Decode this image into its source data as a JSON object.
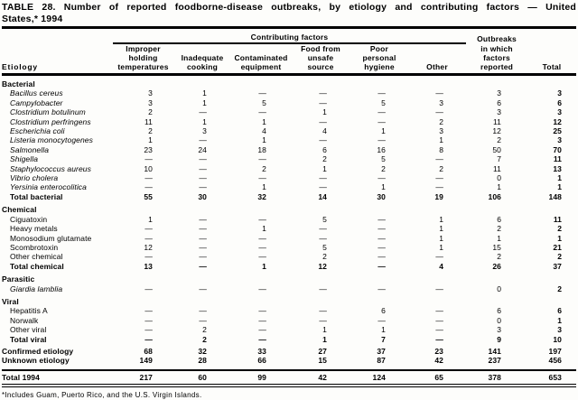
{
  "title": {
    "line1": "TABLE 28. Number of reported foodborne-disease outbreaks, by etiology and contributing factors — United",
    "line2": "States,* 1994"
  },
  "header": {
    "etiology": "Etiology",
    "spanner": "Contributing factors",
    "factors": [
      "Improper\nholding\ntemperatures",
      "Inadequate\ncooking",
      "Contaminated\nequipment",
      "Food from\nunsafe\nsource",
      "Poor\npersonal\nhygiene",
      "Other"
    ],
    "outbreaks_top": "Outbreaks",
    "outbreaks_rest": "in which\nfactors\nreported",
    "total": "Total"
  },
  "sections": [
    {
      "heading": "Bacterial",
      "rows": [
        {
          "label": "Bacillus cereus",
          "italic": true,
          "indent": true,
          "bold": false,
          "values": [
            "3",
            "1",
            "—",
            "—",
            "—",
            "—",
            "3",
            "3"
          ]
        },
        {
          "label": "Campylobacter",
          "italic": true,
          "indent": true,
          "bold": false,
          "values": [
            "3",
            "1",
            "5",
            "—",
            "5",
            "3",
            "6",
            "6"
          ]
        },
        {
          "label": "Clostridium botulinum",
          "italic": true,
          "indent": true,
          "bold": false,
          "values": [
            "2",
            "—",
            "—",
            "1",
            "—",
            "—",
            "3",
            "3"
          ]
        },
        {
          "label": "Clostridium perfringens",
          "italic": true,
          "indent": true,
          "bold": false,
          "values": [
            "11",
            "1",
            "1",
            "—",
            "—",
            "2",
            "11",
            "12"
          ]
        },
        {
          "label": "Escherichia coli",
          "italic": true,
          "indent": true,
          "bold": false,
          "values": [
            "2",
            "3",
            "4",
            "4",
            "1",
            "3",
            "12",
            "25"
          ]
        },
        {
          "label": "Listeria monocytogenes",
          "italic": true,
          "indent": true,
          "bold": false,
          "values": [
            "1",
            "—",
            "1",
            "—",
            "—",
            "1",
            "2",
            "3"
          ]
        },
        {
          "label": "Salmonella",
          "italic": true,
          "indent": true,
          "bold": false,
          "values": [
            "23",
            "24",
            "18",
            "6",
            "16",
            "8",
            "50",
            "70"
          ]
        },
        {
          "label": "Shigella",
          "italic": true,
          "indent": true,
          "bold": false,
          "values": [
            "—",
            "—",
            "—",
            "2",
            "5",
            "—",
            "7",
            "11"
          ]
        },
        {
          "label": "Staphylococcus aureus",
          "italic": true,
          "indent": true,
          "bold": false,
          "values": [
            "10",
            "—",
            "2",
            "1",
            "2",
            "2",
            "11",
            "13"
          ]
        },
        {
          "label": "Vibrio cholera",
          "italic": true,
          "indent": true,
          "bold": false,
          "values": [
            "—",
            "—",
            "—",
            "—",
            "—",
            "—",
            "0",
            "1"
          ]
        },
        {
          "label": "Yersinia enterocolitica",
          "italic": true,
          "indent": true,
          "bold": false,
          "values": [
            "—",
            "—",
            "1",
            "—",
            "1",
            "—",
            "1",
            "1"
          ]
        },
        {
          "label": "Total bacterial",
          "italic": false,
          "indent": true,
          "bold": true,
          "values": [
            "55",
            "30",
            "32",
            "14",
            "30",
            "19",
            "106",
            "148"
          ]
        }
      ]
    },
    {
      "heading": "Chemical",
      "rows": [
        {
          "label": "Ciguatoxin",
          "italic": false,
          "indent": true,
          "bold": false,
          "values": [
            "1",
            "—",
            "—",
            "5",
            "—",
            "1",
            "6",
            "11"
          ]
        },
        {
          "label": "Heavy metals",
          "italic": false,
          "indent": true,
          "bold": false,
          "values": [
            "—",
            "—",
            "1",
            "—",
            "—",
            "1",
            "2",
            "2"
          ]
        },
        {
          "label": "Monosodium glutamate",
          "italic": false,
          "indent": true,
          "bold": false,
          "values": [
            "—",
            "—",
            "—",
            "—",
            "—",
            "1",
            "1",
            "1"
          ]
        },
        {
          "label": "Scombrotoxin",
          "italic": false,
          "indent": true,
          "bold": false,
          "values": [
            "12",
            "—",
            "—",
            "5",
            "—",
            "1",
            "15",
            "21"
          ]
        },
        {
          "label": "Other chemical",
          "italic": false,
          "indent": true,
          "bold": false,
          "values": [
            "—",
            "—",
            "—",
            "2",
            "—",
            "—",
            "2",
            "2"
          ]
        },
        {
          "label": "Total chemical",
          "italic": false,
          "indent": true,
          "bold": true,
          "values": [
            "13",
            "—",
            "1",
            "12",
            "—",
            "4",
            "26",
            "37"
          ]
        }
      ]
    },
    {
      "heading": "Parasitic",
      "rows": [
        {
          "label": "Giardia lamblia",
          "italic": true,
          "indent": true,
          "bold": false,
          "values": [
            "—",
            "—",
            "—",
            "—",
            "—",
            "—",
            "0",
            "2"
          ]
        }
      ]
    },
    {
      "heading": "Viral",
      "rows": [
        {
          "label": "Hepatitis A",
          "italic": false,
          "indent": true,
          "bold": false,
          "values": [
            "—",
            "—",
            "—",
            "—",
            "6",
            "—",
            "6",
            "6"
          ]
        },
        {
          "label": "Norwalk",
          "italic": false,
          "indent": true,
          "bold": false,
          "values": [
            "—",
            "—",
            "—",
            "—",
            "—",
            "—",
            "0",
            "1"
          ]
        },
        {
          "label": "Other viral",
          "italic": false,
          "indent": true,
          "bold": false,
          "values": [
            "—",
            "2",
            "—",
            "1",
            "1",
            "—",
            "3",
            "3"
          ]
        },
        {
          "label": "Total viral",
          "italic": false,
          "indent": true,
          "bold": true,
          "values": [
            "—",
            "2",
            "—",
            "1",
            "7",
            "—",
            "9",
            "10"
          ]
        }
      ]
    },
    {
      "heading": null,
      "rows": [
        {
          "label": "Confirmed etiology",
          "italic": false,
          "indent": false,
          "bold": true,
          "gap_above": true,
          "values": [
            "68",
            "32",
            "33",
            "27",
            "37",
            "23",
            "141",
            "197"
          ]
        },
        {
          "label": "Unknown etiology",
          "italic": false,
          "indent": false,
          "bold": true,
          "pad_below": true,
          "values": [
            "149",
            "28",
            "66",
            "15",
            "87",
            "42",
            "237",
            "456"
          ]
        },
        {
          "label": "Total 1994",
          "italic": false,
          "indent": false,
          "bold": true,
          "grand": true,
          "values": [
            "217",
            "60",
            "99",
            "42",
            "124",
            "65",
            "378",
            "653"
          ]
        }
      ]
    }
  ],
  "footnote": "*Includes Guam, Puerto Rico, and the U.S. Virgin Islands."
}
